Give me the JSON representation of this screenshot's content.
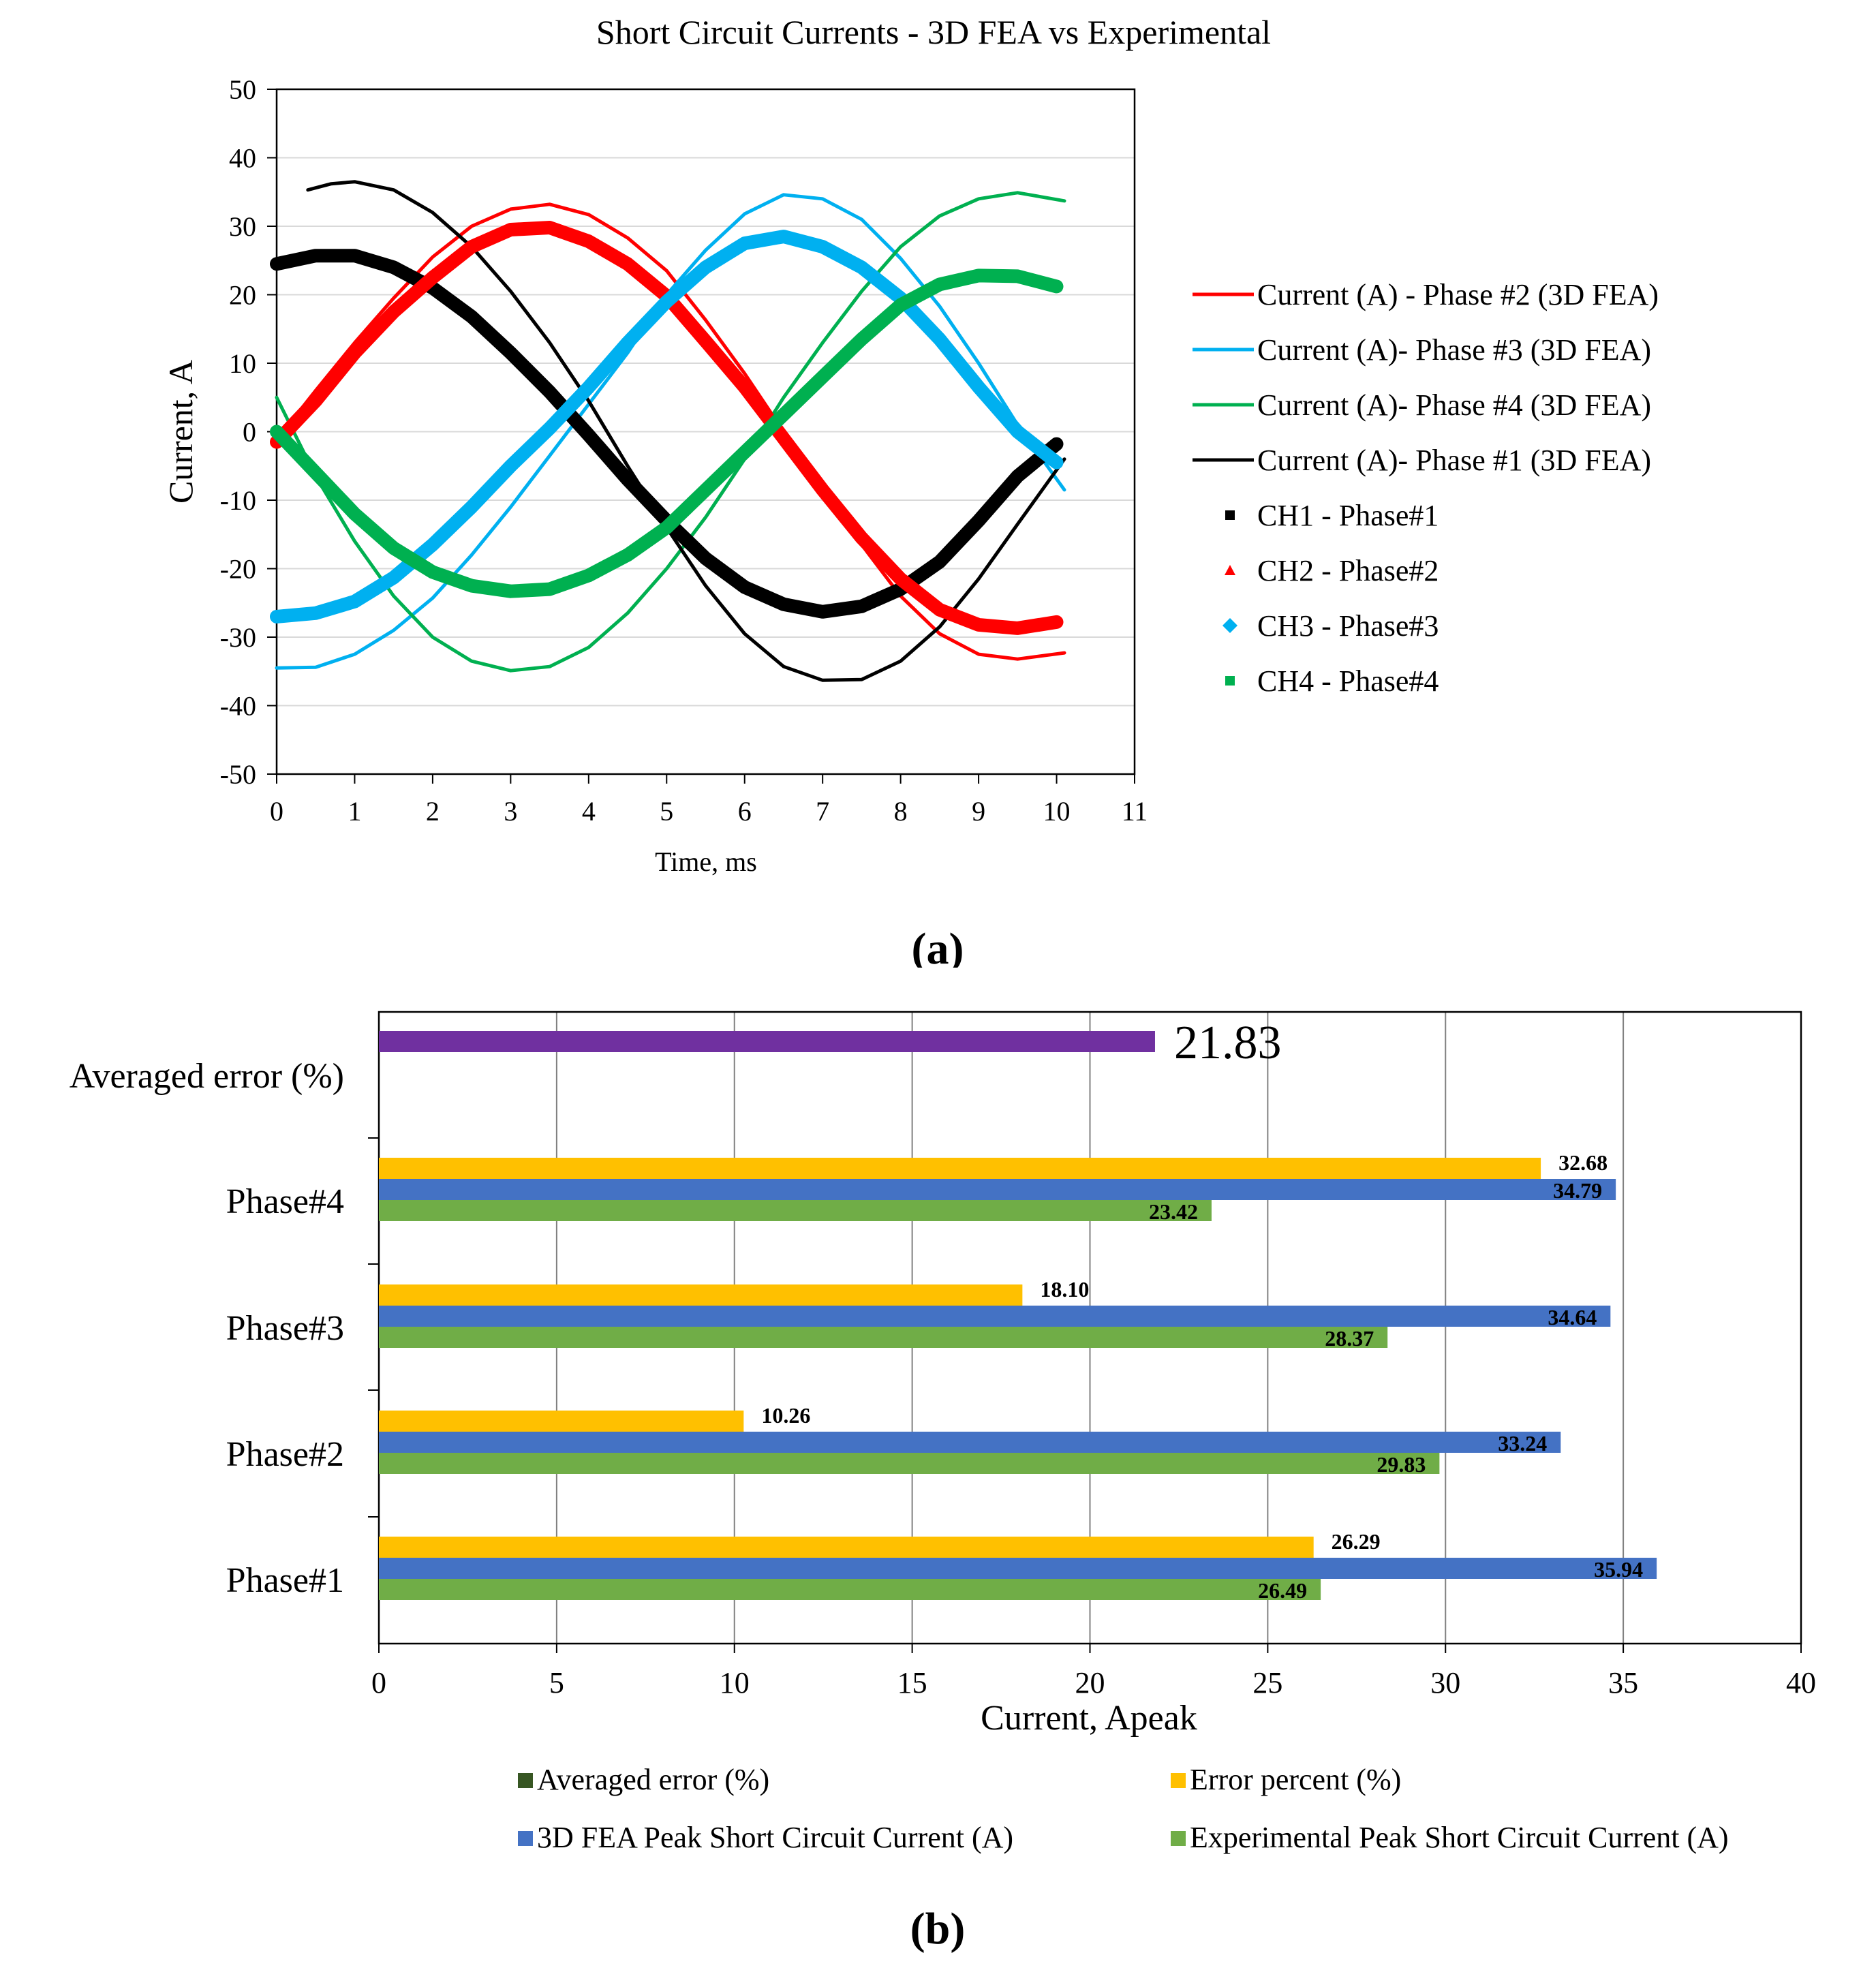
{
  "panel_a_caption": "(a)",
  "panel_b_caption": "(b)",
  "chart_data": [
    {
      "type": "line",
      "title": "Short Circuit Currents - 3D FEA vs Experimental",
      "xlabel": "Time, ms",
      "ylabel": "Current, A",
      "xlim": [
        0,
        11
      ],
      "ylim": [
        -50,
        50
      ],
      "xticks": [
        "0",
        "1",
        "2",
        "3",
        "4",
        "5",
        "6",
        "7",
        "8",
        "9",
        "10",
        "11"
      ],
      "yticks": [
        "50",
        "40",
        "30",
        "20",
        "10",
        "0",
        "-10",
        "-20",
        "-30",
        "-40",
        "-50"
      ],
      "grid": "horizontal",
      "legend_position": "right",
      "series": [
        {
          "name": "Current (A) - Phase #2 (3D FEA)",
          "style": "thin",
          "color": "#ff0000",
          "x": [
            0,
            0.5,
            1,
            1.5,
            2,
            2.5,
            3,
            3.5,
            4,
            4.5,
            5,
            5.5,
            6,
            6.5,
            7,
            7.5,
            8,
            8.5,
            9,
            9.5,
            10.1
          ],
          "y": [
            -1.2,
            6,
            13,
            19.5,
            25.5,
            30,
            32.5,
            33.2,
            31.7,
            28.3,
            23.5,
            16.3,
            8.5,
            0,
            -8.5,
            -16.5,
            -24,
            -29.5,
            -32.5,
            -33.2,
            -32.3
          ]
        },
        {
          "name": "Current (A)- Phase #3 (3D FEA)",
          "style": "thin",
          "color": "#00b0f0",
          "x": [
            0,
            0.5,
            1,
            1.5,
            2,
            2.5,
            3,
            3.5,
            4,
            4.5,
            5,
            5.5,
            6,
            6.5,
            7,
            7.5,
            8,
            8.5,
            9,
            9.5,
            10.1
          ],
          "y": [
            -34.5,
            -34.4,
            -32.5,
            -29,
            -24.3,
            -18,
            -11,
            -3.5,
            4,
            11.5,
            20,
            26.5,
            31.8,
            34.6,
            34,
            31,
            25.3,
            18.3,
            10,
            1,
            -8.5
          ]
        },
        {
          "name": "Current (A)- Phase #4 (3D FEA)",
          "style": "thin",
          "color": "#00b050",
          "x": [
            0,
            0.5,
            1,
            1.5,
            2,
            2.5,
            3,
            3.5,
            4,
            4.5,
            5,
            5.5,
            6,
            6.5,
            7,
            7.5,
            8,
            8.5,
            9,
            9.5,
            10.1
          ],
          "y": [
            5,
            -6.5,
            -16,
            -24,
            -30,
            -33.5,
            -34.9,
            -34.3,
            -31.5,
            -26.5,
            -20,
            -12.5,
            -4,
            5,
            13,
            20.5,
            27,
            31.5,
            34,
            34.9,
            33.7
          ]
        },
        {
          "name": "Current (A)- Phase #1 (3D FEA)",
          "style": "thin",
          "color": "#000000",
          "x": [
            0.4,
            0.7,
            1,
            1.5,
            2,
            2.5,
            3,
            3.5,
            4,
            4.5,
            5,
            5.5,
            6,
            6.5,
            7,
            7.5,
            8,
            8.5,
            9,
            9.5,
            10.1
          ],
          "y": [
            35.3,
            36.2,
            36.5,
            35.3,
            32,
            27,
            20.5,
            13,
            4.5,
            -5,
            -14,
            -22.5,
            -29.5,
            -34.3,
            -36.3,
            -36.2,
            -33.5,
            -28.5,
            -21.5,
            -13.5,
            -4
          ]
        },
        {
          "name": "CH1 - Phase#1",
          "style": "marker-square",
          "color": "#000000",
          "x": [
            0,
            0.5,
            1,
            1.5,
            2,
            2.5,
            3,
            3.5,
            4,
            4.5,
            5,
            5.5,
            6,
            6.5,
            7,
            7.5,
            8,
            8.5,
            9,
            9.5,
            10
          ],
          "y": [
            24.5,
            25.7,
            25.7,
            24,
            21,
            16.8,
            11.5,
            5.8,
            -0.5,
            -7,
            -13,
            -18.5,
            -22.7,
            -25.2,
            -26.3,
            -25.5,
            -23,
            -19,
            -13,
            -6.5,
            -1.8
          ]
        },
        {
          "name": "CH2 - Phase#2",
          "style": "marker-triangle",
          "color": "#ff0000",
          "x": [
            0,
            0.5,
            1,
            1.5,
            2,
            2.5,
            3,
            3.5,
            4,
            4.5,
            5,
            5.5,
            6,
            6.5,
            7,
            7.5,
            8,
            8.5,
            9,
            9.5,
            10
          ],
          "y": [
            -1.5,
            4.5,
            11.5,
            17.5,
            22.5,
            27,
            29.5,
            29.8,
            27.8,
            24.5,
            19.8,
            13.2,
            6.5,
            -1,
            -8.5,
            -15.5,
            -21.5,
            -26,
            -28.2,
            -28.7,
            -27.8
          ]
        },
        {
          "name": "CH3 - Phase#3",
          "style": "marker-diamond",
          "color": "#00b0f0",
          "x": [
            0,
            0.5,
            1,
            1.5,
            2,
            2.5,
            3,
            3.5,
            4,
            4.5,
            5,
            5.5,
            6,
            6.5,
            7,
            7.5,
            8,
            8.5,
            9,
            9.5,
            10
          ],
          "y": [
            -27,
            -26.5,
            -24.8,
            -21.3,
            -16.5,
            -11,
            -5,
            0.5,
            6.5,
            13,
            19,
            24,
            27.5,
            28.5,
            27,
            24,
            19.5,
            13.5,
            6.5,
            0,
            -4.5
          ]
        },
        {
          "name": "CH4 - Phase#4",
          "style": "marker-square",
          "color": "#00b050",
          "x": [
            0,
            0.5,
            1,
            1.5,
            2,
            2.5,
            3,
            3.5,
            4,
            4.5,
            5,
            5.5,
            6,
            6.5,
            7,
            7.5,
            8,
            8.5,
            9,
            9.5,
            10
          ],
          "y": [
            0,
            -6,
            -12,
            -17,
            -20.5,
            -22.5,
            -23.3,
            -23,
            -21,
            -18,
            -14,
            -8.5,
            -3,
            2.5,
            8,
            13.5,
            18.5,
            21.5,
            22.8,
            22.7,
            21.2
          ]
        }
      ]
    },
    {
      "type": "bar",
      "orientation": "horizontal",
      "xlabel": "Current, Apeak",
      "xlim": [
        0,
        40
      ],
      "xticks": [
        "0",
        "5",
        "10",
        "15",
        "20",
        "25",
        "30",
        "35",
        "40"
      ],
      "grid": "vertical",
      "legend_position": "bottom",
      "categories": [
        "Averaged error (%)",
        "Phase#4",
        "Phase#3",
        "Phase#2",
        "Phase#1"
      ],
      "averaged_error": {
        "value": 21.83,
        "label": "21.83",
        "color": "#7030a0"
      },
      "series": [
        {
          "name": "Averaged error (%)",
          "color": "#375623",
          "values": [
            21.83,
            null,
            null,
            null,
            null
          ]
        },
        {
          "name": "Error percent (%)",
          "color": "#ffc000",
          "values": [
            null,
            32.68,
            18.1,
            10.26,
            26.29
          ],
          "labels": [
            "",
            "32.68",
            "18.10",
            "10.26",
            "26.29"
          ]
        },
        {
          "name": "3D FEA Peak Short Circuit Current (A)",
          "color": "#4472c4",
          "values": [
            null,
            34.79,
            34.64,
            33.24,
            35.94
          ],
          "labels": [
            "",
            "34.79",
            "34.64",
            "33.24",
            "35.94"
          ]
        },
        {
          "name": "Experimental Peak Short Circuit Current (A)",
          "color": "#70ad47",
          "values": [
            null,
            23.42,
            28.37,
            29.83,
            26.49
          ],
          "labels": [
            "",
            "23.42",
            "28.37",
            "29.83",
            "26.49"
          ]
        }
      ]
    }
  ]
}
